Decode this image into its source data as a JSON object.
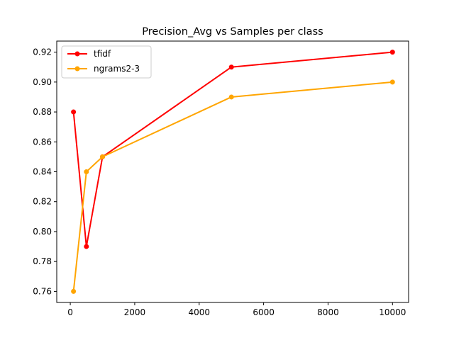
{
  "chart_data": {
    "type": "line",
    "title": "Precision_Avg vs Samples per class",
    "xlabel": "",
    "ylabel": "",
    "xlim": [
      -420,
      10500
    ],
    "ylim": [
      0.7526,
      0.9274
    ],
    "xticks": [
      0,
      2000,
      4000,
      6000,
      8000,
      10000
    ],
    "yticks": [
      0.76,
      0.78,
      0.8,
      0.82,
      0.84,
      0.86,
      0.88,
      0.9,
      0.92
    ],
    "ytick_labels": [
      "0.76",
      "0.78",
      "0.80",
      "0.82",
      "0.84",
      "0.86",
      "0.88",
      "0.90",
      "0.92"
    ],
    "x": [
      100,
      500,
      1000,
      5000,
      10000
    ],
    "series": [
      {
        "name": "tfidf",
        "color": "#ff0000",
        "values": [
          0.88,
          0.79,
          0.85,
          0.91,
          0.92
        ]
      },
      {
        "name": "ngrams2-3",
        "color": "#ffa500",
        "values": [
          0.76,
          0.84,
          0.85,
          0.89,
          0.9
        ]
      }
    ],
    "grid": false,
    "legend_position": "top-left"
  }
}
